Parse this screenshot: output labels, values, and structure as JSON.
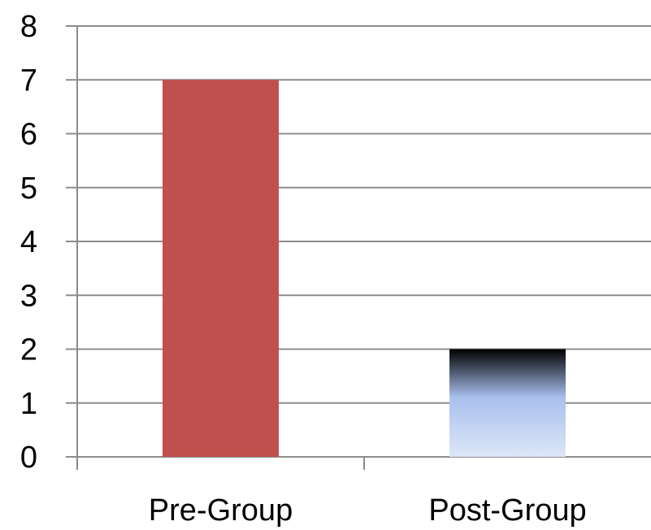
{
  "chart_data": {
    "type": "bar",
    "categories": [
      "Pre-Group",
      "Post-Group"
    ],
    "values": [
      7,
      2
    ],
    "y_ticks": [
      "0",
      "1",
      "2",
      "3",
      "4",
      "5",
      "6",
      "7",
      "8"
    ],
    "ylim": [
      0,
      8
    ],
    "grid": true,
    "legend": "none",
    "title": "",
    "xlabel": "",
    "ylabel": "",
    "bar_fills": [
      "solid-red",
      "gradient-black-to-lightblue"
    ],
    "colors": {
      "pre_group": "#c0504d",
      "post_group_top": "#000000",
      "post_group_mid": "#a9c0ee",
      "post_group_bottom": "#dde6f7",
      "grid": "#8c8c8c"
    }
  }
}
